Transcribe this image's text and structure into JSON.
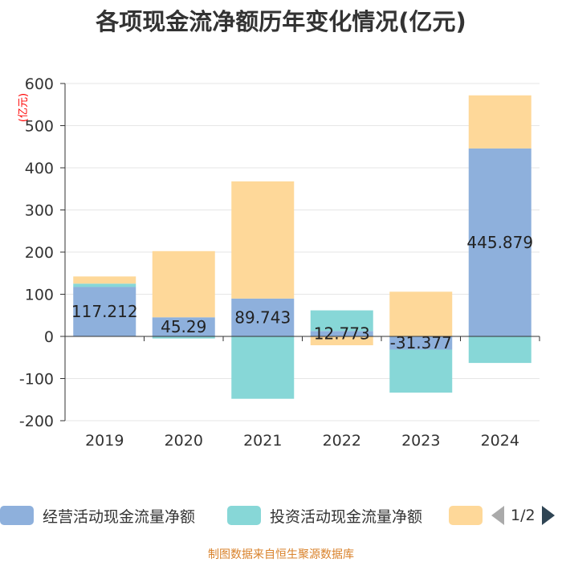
{
  "title": "各项现金流净额历年变化情况(亿元)",
  "source": "制图数据来自恒生聚源数据库",
  "legend": {
    "page_indicator": "1/2",
    "items": [
      {
        "label": "经营活动现金流量净额",
        "color": "#8eb0dc"
      },
      {
        "label": "投资活动现金流量净额",
        "color": "#87d7d7"
      },
      {
        "label": "",
        "color": "#fed899"
      }
    ]
  },
  "chart_data": {
    "type": "bar",
    "stacked": true,
    "title": "各项现金流净额历年变化情况(亿元)",
    "ylabel": "(亿元)",
    "ylim": [
      -200,
      600
    ],
    "yticks": [
      -200,
      -100,
      0,
      100,
      200,
      300,
      400,
      500,
      600
    ],
    "categories": [
      "2019",
      "2020",
      "2021",
      "2022",
      "2023",
      "2024"
    ],
    "series": [
      {
        "name": "经营活动现金流量净额",
        "color": "#8eb0dc",
        "values": [
          117.212,
          45.29,
          89.743,
          12.773,
          -31.377,
          445.879
        ],
        "labels": [
          "117.212",
          "45.29",
          "89.743",
          "12.773",
          "-31.377",
          "445.879"
        ]
      },
      {
        "name": "投资活动现金流量净额",
        "color": "#87d7d7",
        "values": [
          8,
          -5,
          -148,
          49,
          -102,
          -63
        ]
      },
      {
        "name": "",
        "color": "#fed899",
        "values": [
          17,
          157,
          278,
          -21,
          106,
          126
        ]
      }
    ]
  }
}
